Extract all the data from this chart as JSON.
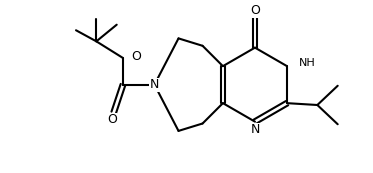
{
  "background_color": "#ffffff",
  "line_color": "#000000",
  "line_width": 1.5,
  "font_size": 8,
  "figsize": [
    3.73,
    1.73
  ],
  "dpi": 100,
  "xlim": [
    0,
    10
  ],
  "ylim": [
    0,
    4.6
  ]
}
